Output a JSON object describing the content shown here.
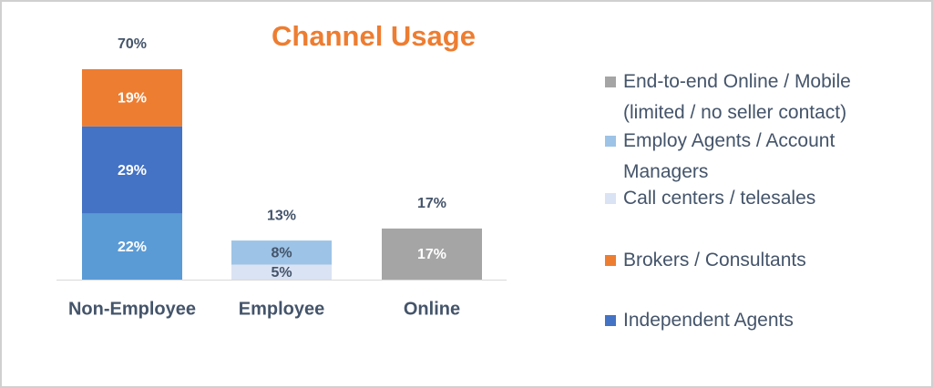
{
  "chart_data": {
    "type": "stacked-bar",
    "title": "Channel Usage",
    "title_color": "#ed7d31",
    "categories": [
      "Non-Employee",
      "Employee",
      "Online"
    ],
    "totals": {
      "values": [
        70,
        13,
        17
      ],
      "value_labels": [
        "70%",
        "13%",
        "17%"
      ]
    },
    "series": [
      {
        "name": "End-to-end Online / Mobile (limited / no seller contact)",
        "color": "#a5a5a5",
        "label_color": "#ffffff",
        "values": [
          null,
          null,
          17
        ],
        "value_labels": [
          null,
          null,
          "17%"
        ]
      },
      {
        "name": "Employ Agents / Account Managers",
        "color": "#9dc3e6",
        "label_color": "#44546a",
        "values": [
          null,
          8,
          null
        ],
        "value_labels": [
          null,
          "8%",
          null
        ]
      },
      {
        "name": "Call centers / telesales",
        "color": "#dae3f3",
        "label_color": "#44546a",
        "values": [
          null,
          5,
          null
        ],
        "value_labels": [
          null,
          "5%",
          null
        ]
      },
      {
        "name": "Brokers / Consultants",
        "color": "#ed7d31",
        "label_color": "#ffffff",
        "values": [
          19,
          null,
          null
        ],
        "value_labels": [
          "19%",
          null,
          null
        ]
      },
      {
        "name": "Independent Agents",
        "color": "#4472c4",
        "label_color": "#ffffff",
        "values": [
          29,
          null,
          null
        ],
        "value_labels": [
          "29%",
          null,
          null
        ]
      },
      {
        "color": "#5b9bd5",
        "label_color": "#ffffff",
        "values": [
          22,
          null,
          null
        ],
        "value_labels": [
          "22%",
          null,
          null
        ]
      }
    ]
  }
}
